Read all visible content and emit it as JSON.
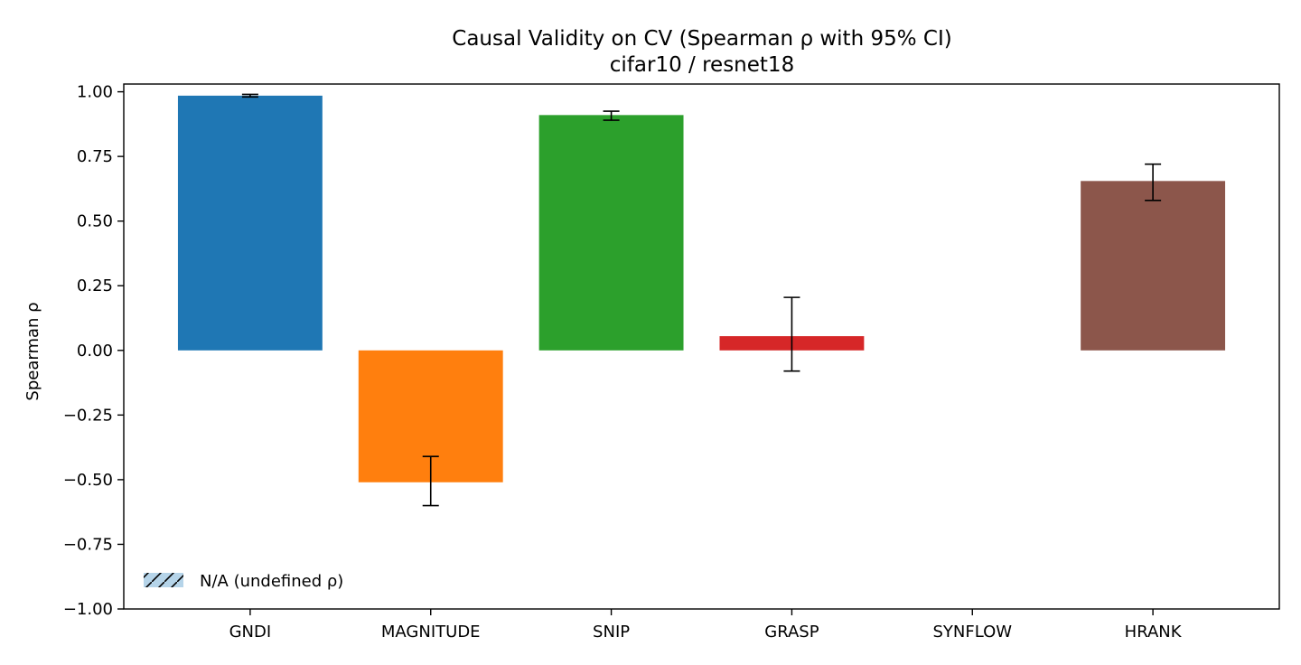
{
  "chart_data": {
    "type": "bar",
    "title": "Causal Validity on CV (Spearman ρ with 95% CI)",
    "subtitle": "cifar10 / resnet18",
    "xlabel": "",
    "ylabel": "Spearman ρ",
    "ylim": [
      -1.0,
      1.03
    ],
    "yticks": [
      "−1.00",
      "−0.75",
      "−0.50",
      "−0.25",
      "0.00",
      "0.25",
      "0.50",
      "0.75",
      "1.00"
    ],
    "ytick_values": [
      -1.0,
      -0.75,
      -0.5,
      -0.25,
      0.0,
      0.25,
      0.5,
      0.75,
      1.0
    ],
    "categories": [
      "GNDI",
      "MAGNITUDE",
      "SNIP",
      "GRASP",
      "SYNFLOW",
      "HRANK"
    ],
    "values": [
      0.985,
      -0.51,
      0.91,
      0.055,
      null,
      0.655
    ],
    "ci_low": [
      0.98,
      -0.6,
      0.89,
      -0.08,
      null,
      0.58
    ],
    "ci_high": [
      0.99,
      -0.41,
      0.925,
      0.205,
      null,
      0.72
    ],
    "colors": [
      "#1f77b4",
      "#ff7f0e",
      "#2ca02c",
      "#d62728",
      "#9467bd",
      "#8c564b"
    ],
    "legend": {
      "placement": "lower-left",
      "entries": [
        {
          "label": "N/A (undefined ρ)",
          "color": "#b5d4e9",
          "hatch": "//"
        }
      ]
    },
    "grid": false
  }
}
